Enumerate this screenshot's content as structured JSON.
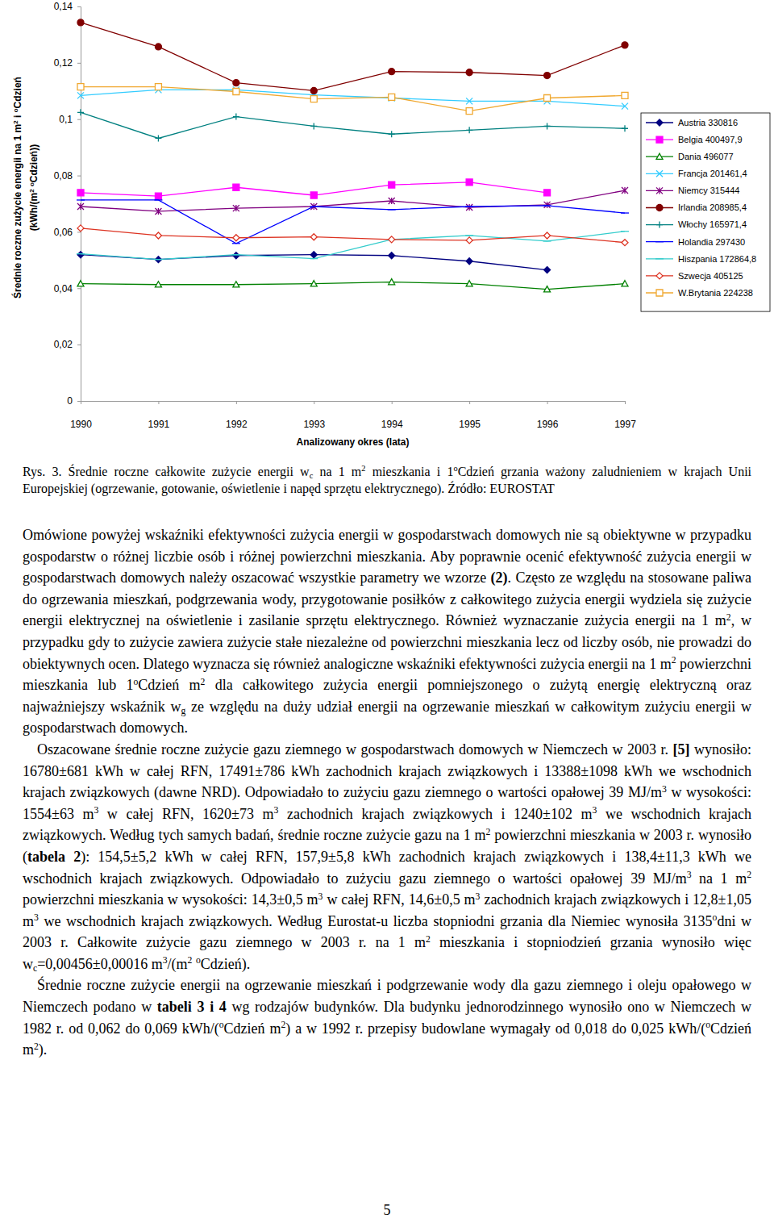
{
  "chart_data": {
    "type": "line",
    "x_label": "Analizowany okres (lata)",
    "y_label": [
      [
        "Średnie roczne zużycie energii na 1 m",
        {
          "sup": "2"
        },
        " i ",
        {
          "sup": "o"
        },
        "Cdzień"
      ],
      [
        "(kWh/(m",
        {
          "sup": "2"
        },
        " ",
        {
          "sup": "o"
        },
        "Cdzień))"
      ]
    ],
    "categories": [
      "1990",
      "1991",
      "1992",
      "1993",
      "1994",
      "1995",
      "1996",
      "1997"
    ],
    "ylim": [
      0,
      0.14
    ],
    "yticks": [
      0,
      {
        "value": 0.02,
        "label": "0,02"
      },
      {
        "value": 0.04,
        "label": "0,04"
      },
      {
        "value": 0.06,
        "label": "0,06"
      },
      {
        "value": 0.08,
        "label": "0,08"
      },
      {
        "value": 0.1,
        "label": "0,1"
      },
      {
        "value": 0.12,
        "label": "0,12"
      },
      {
        "value": 0.14,
        "label": "0,14"
      }
    ],
    "grid": false,
    "legend": "right",
    "series": [
      {
        "name": "Austria 330816",
        "color": "#000080",
        "marker": "diamond",
        "values": [
          0.0519,
          0.0502,
          0.0516,
          0.0519,
          0.0516,
          0.0496,
          0.0465,
          null
        ]
      },
      {
        "name": "Belgia 400497,9",
        "color": "#ff00ff",
        "marker": "square",
        "values": [
          0.0739,
          0.0727,
          0.0758,
          0.073,
          0.0767,
          0.0776,
          0.0739,
          null
        ]
      },
      {
        "name": "Dania 496077",
        "color": "#008000",
        "marker": "triangle-open",
        "values": [
          0.0416,
          0.0413,
          0.0413,
          0.0416,
          0.0422,
          0.0416,
          0.0396,
          0.0416
        ]
      },
      {
        "name": "Francja 201461,4",
        "color": "#33ccff",
        "marker": "x",
        "values": [
          0.1084,
          0.1104,
          0.1104,
          0.1086,
          0.1075,
          0.1064,
          0.1064,
          0.1046
        ]
      },
      {
        "name": "Niemcy 315444",
        "color": "#800080",
        "marker": "asterisk",
        "values": [
          0.069,
          0.0673,
          0.0684,
          0.069,
          0.071,
          0.0687,
          0.0696,
          0.0747
        ]
      },
      {
        "name": "Irlandia 208985,4",
        "color": "#800000",
        "marker": "circle",
        "values": [
          0.1343,
          0.1257,
          0.1129,
          0.1101,
          0.1169,
          0.1166,
          0.1155,
          0.1263
        ]
      },
      {
        "name": "Włochy 165971,4",
        "color": "#008080",
        "marker": "plus",
        "values": [
          0.1024,
          0.0932,
          0.1009,
          0.0975,
          0.0947,
          0.0961,
          0.0975,
          0.0967
        ]
      },
      {
        "name": "Holandia 297430",
        "color": "#0000ff",
        "marker": "dash",
        "values": [
          0.0713,
          0.0713,
          0.0559,
          0.069,
          0.0679,
          0.069,
          0.0693,
          0.0667
        ]
      },
      {
        "name": "Hiszpania 172864,8",
        "color": "#33cccc",
        "marker": "dash",
        "values": [
          0.0522,
          0.0502,
          0.0519,
          0.0505,
          0.0573,
          0.0587,
          0.0567,
          0.0602
        ]
      },
      {
        "name": "Szwecja 405125",
        "color": "#dd3322",
        "marker": "diamond-open",
        "values": [
          0.0613,
          0.0587,
          0.0579,
          0.0582,
          0.0573,
          0.057,
          0.0587,
          0.0562
        ]
      },
      {
        "name": "W.Brytania 224238",
        "color": "#f0a830",
        "marker": "square-open",
        "values": [
          0.1115,
          0.1115,
          0.1098,
          0.1072,
          0.1078,
          0.1029,
          0.1075,
          0.1084
        ]
      }
    ]
  },
  "document": {
    "caption": [
      "Rys. 3. Średnie roczne całkowite zużycie energii w",
      {
        "sub": "c"
      },
      " na 1 m",
      {
        "sup": "2"
      },
      " mieszkania i 1",
      {
        "sup": "o"
      },
      "Cdzień grzania ważony zaludnieniem w krajach Unii Europejskiej (ogrzewanie, gotowanie, oświetlenie i napęd sprzętu elektrycznego). Źródło: EUROSTAT"
    ],
    "paragraphs": [
      [
        "Omówione powyżej wskaźniki efektywności zużycia energii w gospodarstwach domowych nie są obiektywne w przypadku gospodarstw o różnej liczbie osób i różnej powierzchni mieszkania. Aby poprawnie ocenić efektywność zużycia energii w gospodarstwach domowych należy oszacować wszystkie parametry we wzorze ",
        {
          "bold": "(2)"
        },
        ". Często ze względu na stosowane paliwa do ogrzewania mieszkań, podgrzewania wody, przygotowanie posiłków z całkowitego zużycia energii wydziela się zużycie energii elektrycznej na oświetlenie i zasilanie sprzętu elektrycznego. Również wyznaczanie zużycia energii na 1 m",
        {
          "sup": "2"
        },
        ", w przypadku gdy to zużycie zawiera zużycie stałe niezależne od powierzchni mieszkania lecz od liczby osób, nie prowadzi do obiektywnych ocen. Dlatego wyznacza się również analogiczne wskaźniki efektywności zużycia energii na 1 m",
        {
          "sup": "2"
        },
        " powierzchni mieszkania lub 1",
        {
          "sup": "o"
        },
        "Cdzień m",
        {
          "sup": "2"
        },
        " dla całkowitego zużycia energii pomniejszonego o zużytą energię elektryczną oraz najważniejszy wskaźnik w",
        {
          "sub": "g"
        },
        " ze względu na duży udział energii na ogrzewanie mieszkań w całkowitym zużyciu energii w gospodarstwach domowych."
      ],
      [
        "Oszacowane średnie roczne zużycie gazu ziemnego w gospodarstwach domowych w Niemczech w 2003 r. ",
        {
          "bold": "[5]"
        },
        " wynosiło: 16780±681 kWh w całej RFN, 17491±786 kWh zachodnich krajach związkowych i 13388±1098 kWh we wschodnich krajach związkowych (dawne NRD). Odpowiadało to zużyciu gazu ziemnego o wartości opałowej 39 MJ/m",
        {
          "sup": "3"
        },
        " w wysokości: 1554±63 m",
        {
          "sup": "3"
        },
        " w całej RFN, 1620±73 m",
        {
          "sup": "3"
        },
        " zachodnich krajach związkowych i 1240±102 m",
        {
          "sup": "3"
        },
        " we wschodnich krajach związkowych. Według tych samych badań, średnie roczne zużycie gazu na 1 m",
        {
          "sup": "2"
        },
        " powierzchni mieszkania w 2003 r. wynosiło (",
        {
          "bold": "tabela 2"
        },
        "): 154,5±5,2 kWh w całej RFN, 157,9±5,8 kWh zachodnich krajach związkowych i 138,4±11,3 kWh we wschodnich krajach związkowych. Odpowiadało to zużyciu gazu ziemnego o wartości opałowej 39 MJ/m",
        {
          "sup": "3"
        },
        " na 1 m",
        {
          "sup": "2"
        },
        " powierzchni mieszkania w wysokości: 14,3±0,5 m",
        {
          "sup": "3"
        },
        " w całej RFN, 14,6±0,5 m",
        {
          "sup": "3"
        },
        " zachodnich krajach związkowych i 12,8±1,05 m",
        {
          "sup": "3"
        },
        " we wschodnich krajach związkowych. Według Eurostat-u liczba stopniodni grzania dla Niemiec wynosiła 3135",
        {
          "sup": "o"
        },
        "dni w 2003 r. Całkowite zużycie gazu ziemnego w 2003 r. na 1 m",
        {
          "sup": "2"
        },
        " mieszkania i stopniodzień grzania wynosiło więc w",
        {
          "sub": "c"
        },
        "=0,00456±0,00016 m",
        {
          "sup": "3"
        },
        "/(m",
        {
          "sup": "2"
        },
        " ",
        {
          "sup": "o"
        },
        "Cdzień)."
      ],
      [
        "Średnie roczne zużycie energii na ogrzewanie mieszkań i podgrzewanie wody dla gazu ziemnego i oleju opałowego w Niemczech podano w ",
        {
          "bold": "tabeli 3 i 4"
        },
        " wg rodzajów budynków. Dla budynku jednorodzinnego wynosiło ono w Niemczech w 1982 r. od 0,062 do 0,069 kWh/(",
        {
          "sup": "o"
        },
        "Cdzień m",
        {
          "sup": "2"
        },
        ") a w 1992 r. przepisy budowlane wymagały od 0,018 do 0,025 kWh/(",
        {
          "sup": "o"
        },
        "Cdzień m",
        {
          "sup": "2"
        },
        ")."
      ]
    ],
    "page_number": "5"
  }
}
